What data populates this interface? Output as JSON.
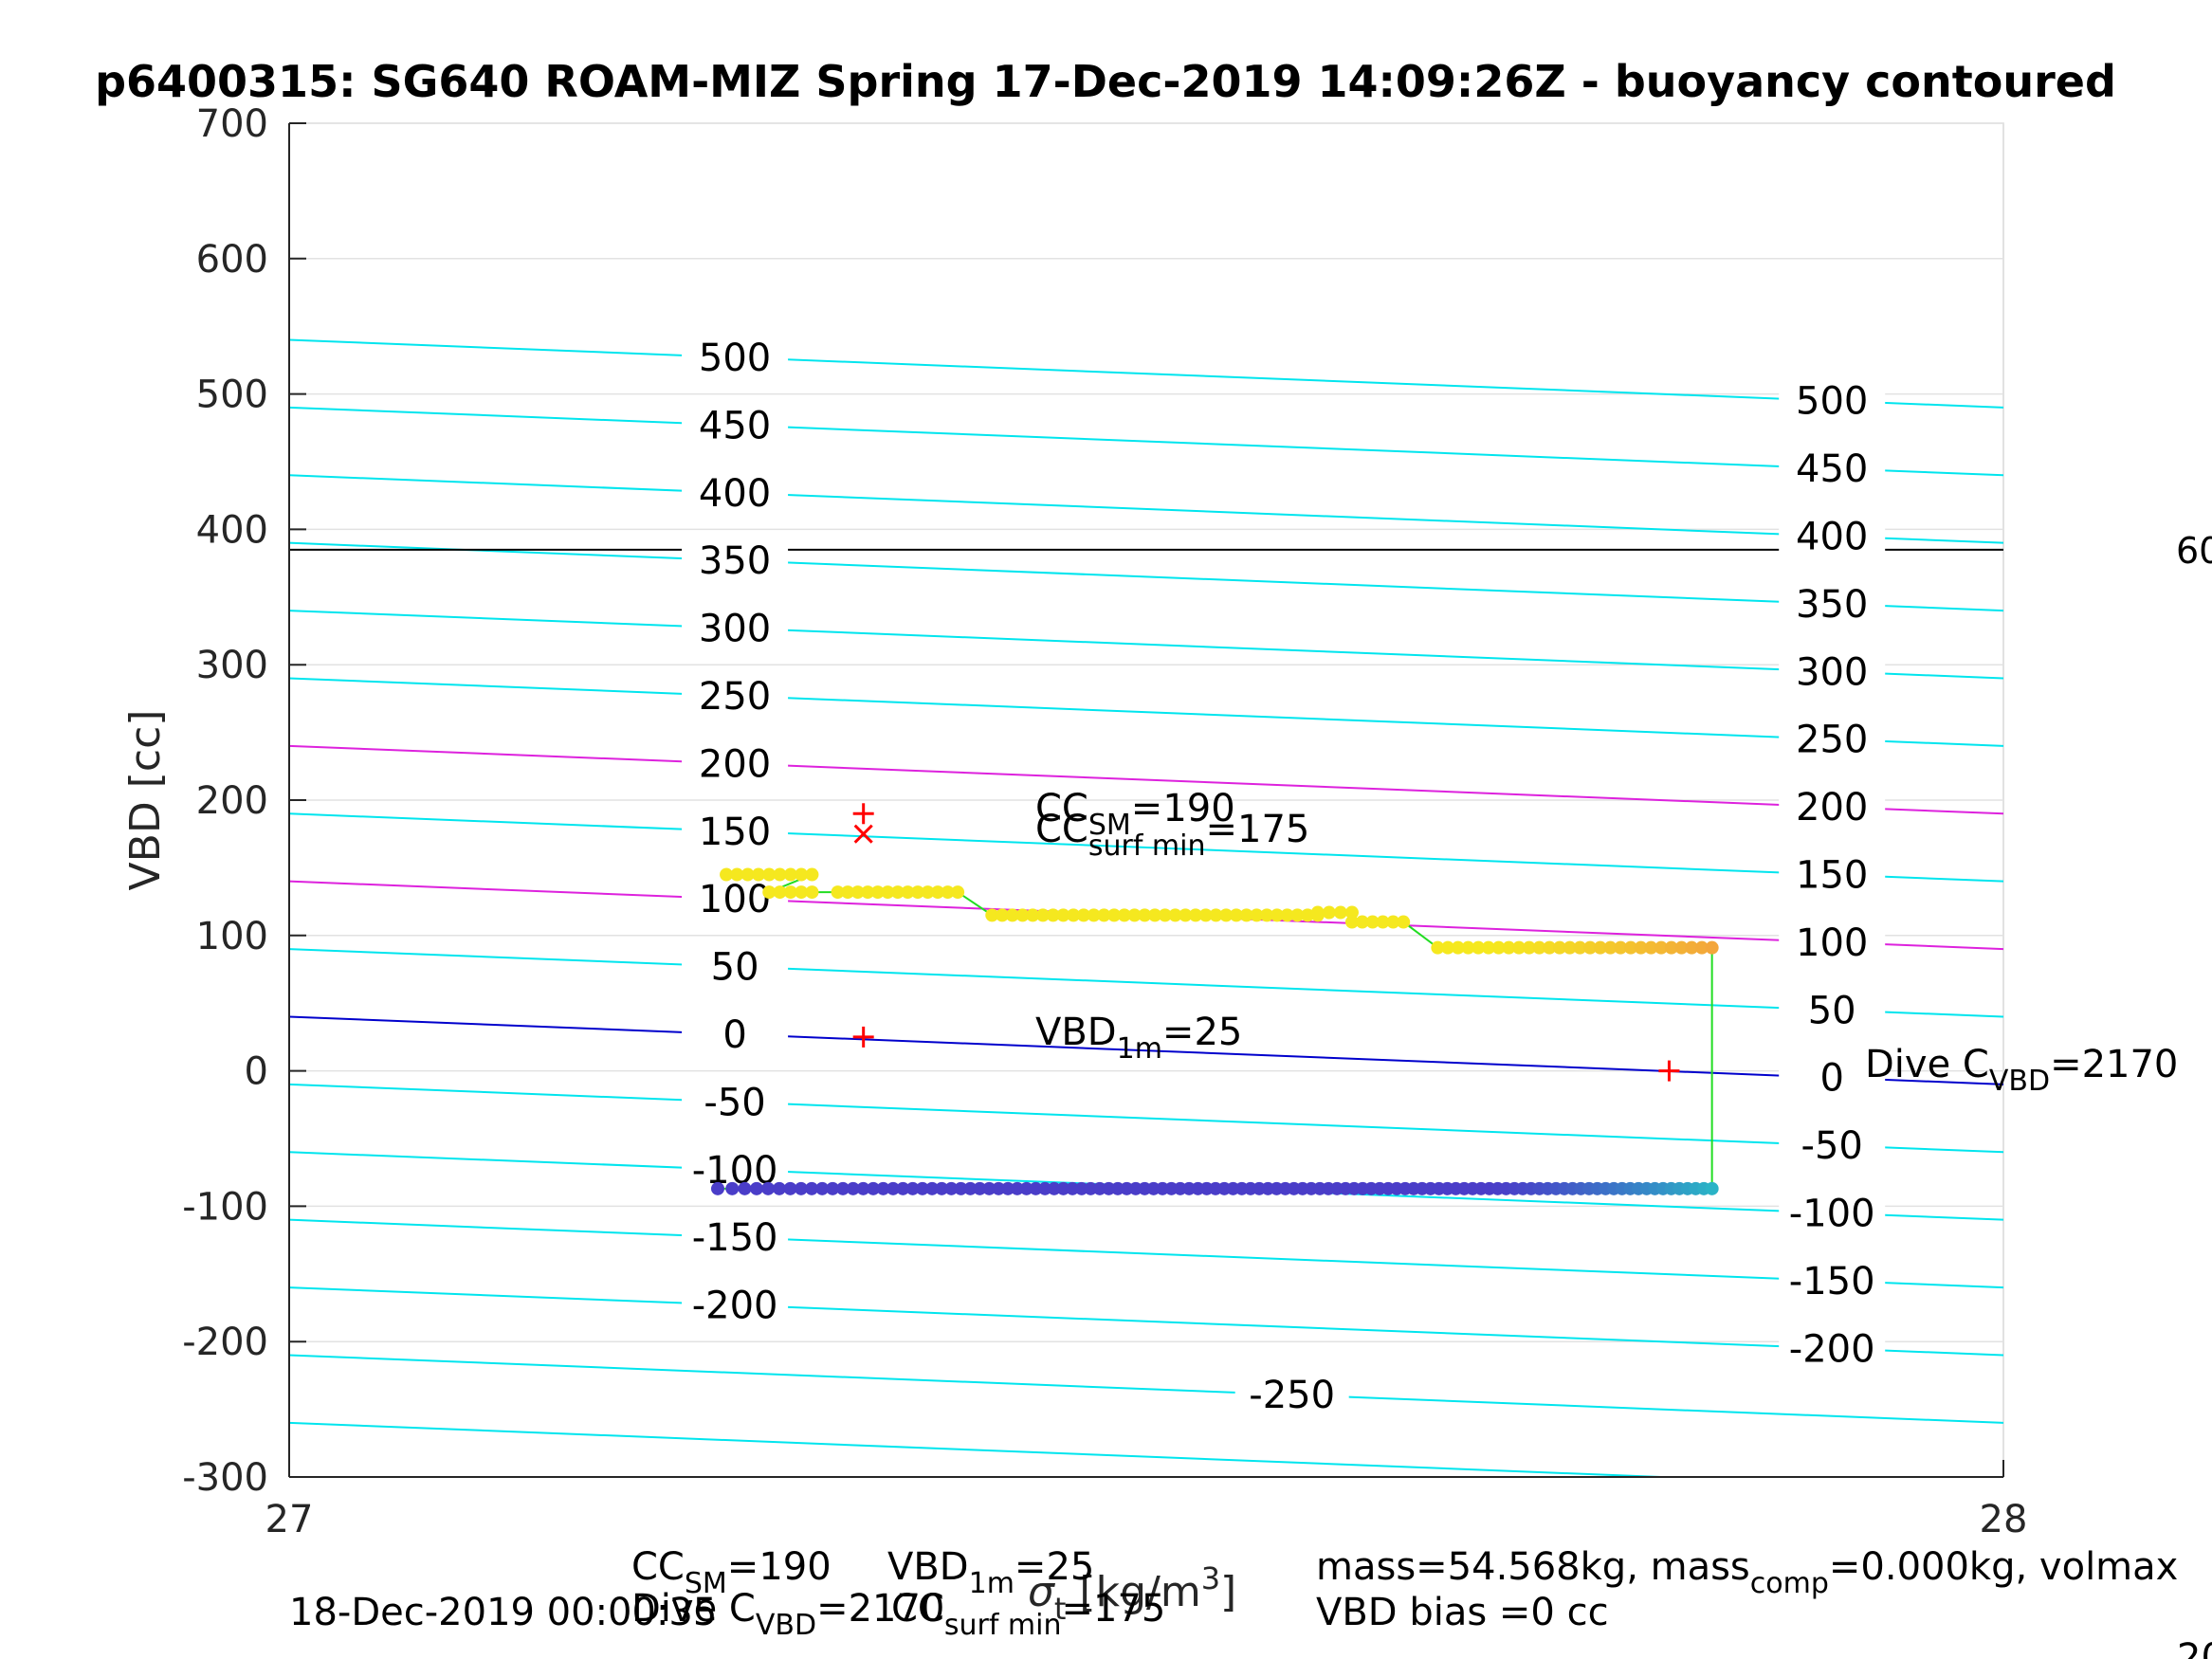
{
  "chart_data": {
    "type": "scatter",
    "title": "p6400315: SG640 ROAM-MIZ Spring 17-Dec-2019 14:09:26Z - buoyancy contoured",
    "xlabel_parts": {
      "sigma": "σ",
      "sub": "t",
      "unit": " [kg/m",
      "sup": "3",
      "close": "]"
    },
    "ylabel": "VBD [cc]",
    "xlim": [
      27,
      28
    ],
    "ylim": [
      -300,
      700
    ],
    "x_ticks": [
      "27",
      "28"
    ],
    "y_ticks": [
      "-300",
      "-200",
      "-100",
      "0",
      "100",
      "200",
      "300",
      "400",
      "500",
      "600",
      "700"
    ],
    "grid": true,
    "colors": {
      "contour": "#00e5ee",
      "zero_contour": "#0000cc",
      "limit_contour": "#dd22dd",
      "path": "#22dd22",
      "marker": "#ff0000",
      "dive_points": "#f5e81f",
      "dive_points_end": "#f3a63b",
      "climb_points": "#4a3dc8",
      "climb_points_end": "#2ab3c6",
      "reference_line": "#000000"
    },
    "contour_levels": [
      -300,
      -250,
      -200,
      -150,
      -100,
      -50,
      0,
      50,
      100,
      150,
      200,
      250,
      300,
      350,
      400,
      450,
      500
    ],
    "contour_labels_left": [
      "-200",
      "-150",
      "-100",
      "-50",
      "0",
      "50",
      "100",
      "150",
      "200",
      "250",
      "300",
      "350",
      "400",
      "450",
      "500"
    ],
    "contour_labels_right": [
      "-200",
      "-150",
      "-100",
      "-50",
      "0",
      "50",
      "100",
      "150",
      "200",
      "250",
      "300",
      "350",
      "400",
      "450",
      "500"
    ],
    "contour_label_bottom": "-250",
    "contour_vbd_at_x27": {
      "-300": -260,
      "-250": -210,
      "-200": -160,
      "-150": -110,
      "-100": -60,
      "-50": -10,
      "0": 40,
      "50": 90,
      "100": 140,
      "150": 190,
      "200": 240,
      "250": 290,
      "300": 340,
      "350": 390,
      "400": 440,
      "450": 490,
      "500": 540
    },
    "contour_slope_per_unit_x": -50,
    "reference_line_vbd": 385,
    "reference_label": "60",
    "dive_series": {
      "name": "dive",
      "segments": [
        {
          "x": [
            27.255,
            27.305
          ],
          "y": [
            145,
            145
          ]
        },
        {
          "x": [
            27.28,
            27.305
          ],
          "y": [
            132,
            132
          ]
        },
        {
          "x": [
            27.32,
            27.39
          ],
          "y": [
            132,
            132
          ]
        },
        {
          "x": [
            27.41,
            27.6
          ],
          "y": [
            115,
            115
          ]
        },
        {
          "x": [
            27.6,
            27.62
          ],
          "y": [
            117,
            117
          ]
        },
        {
          "x": [
            27.62,
            27.65
          ],
          "y": [
            110,
            110
          ]
        },
        {
          "x": [
            27.67,
            27.83
          ],
          "y": [
            91,
            91
          ]
        }
      ]
    },
    "climb_series": {
      "name": "climb",
      "y": -87,
      "x_range": [
        27.25,
        27.83
      ]
    },
    "vertical_path": {
      "x": 27.83,
      "y": [
        91,
        -87
      ]
    },
    "markers": [
      {
        "symbol": "+",
        "x": 27.335,
        "y": 190
      },
      {
        "symbol": "x",
        "x": 27.335,
        "y": 175
      },
      {
        "symbol": "+",
        "x": 27.335,
        "y": 25
      },
      {
        "symbol": "+",
        "x": 27.805,
        "y": 0
      }
    ],
    "annotations": {
      "cc_sm": {
        "main": "CC",
        "sub": "SM",
        "value": "=190"
      },
      "cc_surf": {
        "main": "CC",
        "sub": "surf min",
        "value": "=175"
      },
      "vbd_1m": {
        "main": "VBD",
        "sub": "1m",
        "value": "=25"
      },
      "dive_c": {
        "main": "Dive C",
        "sub": "VBD",
        "value": "=2170"
      }
    },
    "footer": {
      "date": "18-Dec-2019 00:00:35",
      "cc_sm_main": "CC",
      "cc_sm_sub": "SM",
      "cc_sm_value": "=190",
      "vbd_main": "VBD",
      "vbd_sub": "1m",
      "vbd_value": "=25",
      "divec_main": "Dive C",
      "divec_sub": "VBD",
      "divec_value": "=2170",
      "ccsurf_main": "CC",
      "ccsurf_sub": "surf min",
      "ccsurf_value": "=175",
      "mass_a": "mass=54.568kg, mass",
      "mass_sub": "comp",
      "mass_b": "=0.000kg, volmax",
      "bias": "VBD bias =0 cc",
      "corner": "20"
    }
  }
}
